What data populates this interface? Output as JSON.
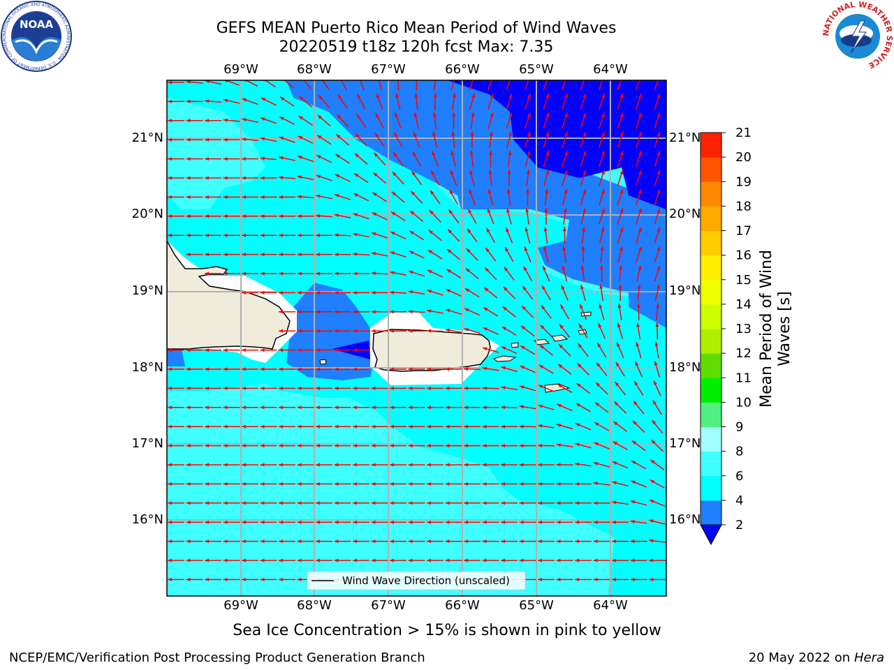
{
  "header": {
    "title_line1": "GEFS MEAN Puerto Rico Mean Period of Wind Waves",
    "title_line2": "20220519 t18z 120h fcst   Max: 7.35"
  },
  "logos": {
    "noaa": {
      "text": "NOAA",
      "ring": "NATIONAL OCEANIC AND ATMOSPHERIC ADMINISTRATION · U.S. DEPARTMENT OF COMMERCE"
    },
    "nws": {
      "ring": "NATIONAL WEATHER SERVICE"
    }
  },
  "map": {
    "lon_ticks": [
      "69°W",
      "68°W",
      "67°W",
      "66°W",
      "65°W",
      "64°W"
    ],
    "lat_ticks": [
      "21°N",
      "20°N",
      "19°N",
      "18°N",
      "17°N",
      "16°N"
    ],
    "legend_label": "Wind Wave Direction (unscaled)",
    "colors": {
      "land": "#efecdc",
      "c2_4": "#1f7fff",
      "c4_6": "#00ffff",
      "c6_8": "#40ffff",
      "below2": "#0000ff",
      "arrow": "#ff0000",
      "grid": "#b0b0b0"
    }
  },
  "colorbar": {
    "label": "Mean Period of Wind Waves [s]",
    "ticks": [
      "2",
      "4",
      "6",
      "8",
      "9",
      "10",
      "11",
      "12",
      "13",
      "14",
      "15",
      "16",
      "17",
      "18",
      "19",
      "20",
      "21"
    ],
    "colors": [
      "#1f7fff",
      "#00ffff",
      "#40ffff",
      "#a0ffff",
      "#50f080",
      "#00ee00",
      "#60dd00",
      "#b0ee00",
      "#ccff00",
      "#eeff00",
      "#ffee00",
      "#ffcc00",
      "#ffaa00",
      "#ff8800",
      "#ff5500",
      "#ff2200"
    ],
    "over_color": "#ff0000",
    "under_color": "#0000ff"
  },
  "subtitle": "Sea Ice Concentration > 15% is shown in pink to yellow",
  "footer": {
    "left": "NCEP/EMC/Verification Post Processing Product Generation Branch",
    "right_date": "20 May 2022 on",
    "right_host": "Hera"
  }
}
